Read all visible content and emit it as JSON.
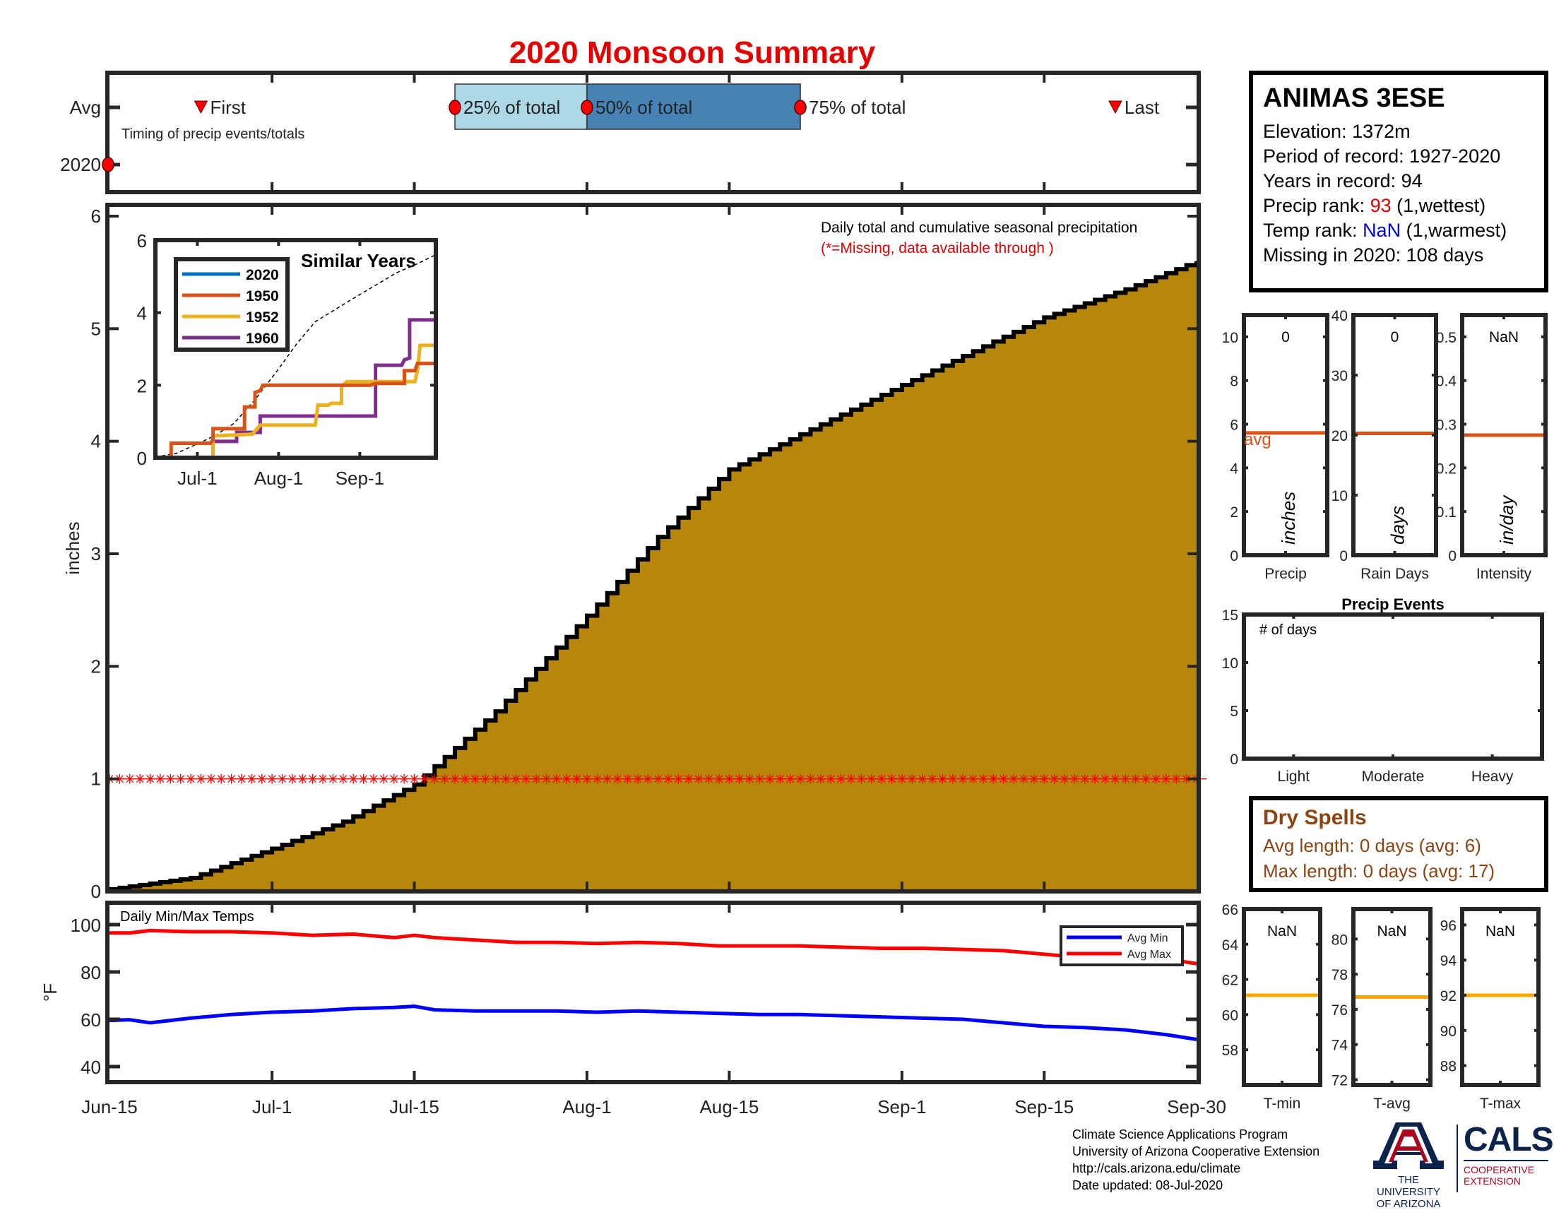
{
  "title": "2020 Monsoon Summary",
  "timeline": {
    "row_labels": [
      "Avg",
      "2020"
    ],
    "caption": "Timing of precip events/totals",
    "markers": [
      {
        "label": "First",
        "date_day": 9,
        "kind": "triangle"
      },
      {
        "label": "25% of total",
        "date_day": 34,
        "kind": "circle"
      },
      {
        "label": "50% of total",
        "date_day": 47,
        "kind": "circle"
      },
      {
        "label": "75% of total",
        "date_day": 68,
        "kind": "circle"
      },
      {
        "label": "Last",
        "date_day": 99,
        "kind": "triangle"
      }
    ],
    "marker_2020_day": 0,
    "band_colors": {
      "q1": "#add8e6",
      "q2": "#4682b4"
    }
  },
  "station": {
    "name": "ANIMAS 3ESE",
    "elevation_label": "Elevation: 1372m",
    "period_label": "Period of record: 1927-2020",
    "years_label": "Years in record: 94",
    "precip_rank_prefix": "Precip rank: ",
    "precip_rank": "93",
    "precip_rank_suffix": " (1,wettest)",
    "temp_rank_prefix": "Temp rank: ",
    "temp_rank": "NaN",
    "temp_rank_suffix": " (1,warmest)",
    "missing_label": "Missing in 2020: 108 days"
  },
  "chart_data": [
    {
      "id": "cumulative-precip",
      "type": "area",
      "title": "Daily total and cumulative seasonal precipitation",
      "subtitle": "(*=Missing, data available through )",
      "ylabel": "inches",
      "ylim": [
        0,
        6
      ],
      "yticks": [
        0,
        1,
        2,
        3,
        4,
        5,
        6
      ],
      "xlim_days": [
        0,
        107
      ],
      "xticks": [
        {
          "day": 0,
          "label": "Jun-15"
        },
        {
          "day": 16,
          "label": "Jul-1"
        },
        {
          "day": 30,
          "label": "Jul-15"
        },
        {
          "day": 47,
          "label": "Aug-1"
        },
        {
          "day": 61,
          "label": "Aug-15"
        },
        {
          "day": 78,
          "label": "Sep-1"
        },
        {
          "day": 92,
          "label": "Sep-15"
        },
        {
          "day": 107,
          "label": "Sep-30"
        }
      ],
      "fill_color": "#b8860b",
      "avg_cumulative_keypoints": {
        "days": [
          0,
          8,
          16,
          23,
          30,
          38,
          47,
          54,
          61,
          70,
          78,
          85,
          92,
          100,
          107
        ],
        "values": [
          0.02,
          0.12,
          0.38,
          0.62,
          0.95,
          1.6,
          2.45,
          3.15,
          3.75,
          4.15,
          4.5,
          4.8,
          5.1,
          5.35,
          5.6
        ]
      },
      "missing_marker_value": 1,
      "missing_days_count": 108,
      "missing_color": "#ff0000"
    },
    {
      "id": "similar-years",
      "type": "line",
      "title": "Similar Years",
      "ylim": [
        0,
        6
      ],
      "yticks": [
        0,
        2,
        4,
        6
      ],
      "xticks": [
        {
          "day": 16,
          "label": "Jul-1"
        },
        {
          "day": 47,
          "label": "Aug-1"
        },
        {
          "day": 78,
          "label": "Sep-1"
        }
      ],
      "xlim_days": [
        0,
        107
      ],
      "legend_position": "top-left",
      "series": [
        {
          "name": "2020",
          "color": "#0072bd",
          "steps": [
            [
              0,
              0
            ],
            [
              107,
              0
            ]
          ]
        },
        {
          "name": "1950",
          "color": "#d95319",
          "steps": [
            [
              0,
              0
            ],
            [
              6,
              0
            ],
            [
              6,
              0.4
            ],
            [
              21,
              0.4
            ],
            [
              22,
              0.5
            ],
            [
              22,
              0.8
            ],
            [
              34,
              0.8
            ],
            [
              34,
              1.4
            ],
            [
              38,
              1.4
            ],
            [
              38,
              1.8
            ],
            [
              40,
              1.85
            ],
            [
              41,
              2.0
            ],
            [
              82,
              2.0
            ],
            [
              84,
              2.05
            ],
            [
              95,
              2.05
            ],
            [
              95,
              2.4
            ],
            [
              99,
              2.4
            ],
            [
              100,
              2.6
            ],
            [
              107,
              2.6
            ]
          ]
        },
        {
          "name": "1952",
          "color": "#edb120",
          "steps": [
            [
              0,
              0
            ],
            [
              22,
              0
            ],
            [
              22,
              0.6
            ],
            [
              37,
              0.65
            ],
            [
              40,
              0.9
            ],
            [
              61,
              0.9
            ],
            [
              62,
              1.45
            ],
            [
              66,
              1.45
            ],
            [
              67,
              1.5
            ],
            [
              71,
              1.5
            ],
            [
              71,
              1.95
            ],
            [
              73,
              2.1
            ],
            [
              99,
              2.1
            ],
            [
              100,
              2.4
            ],
            [
              101,
              3.1
            ],
            [
              107,
              3.1
            ]
          ]
        },
        {
          "name": "1960",
          "color": "#7e2f8e",
          "steps": [
            [
              0,
              0
            ],
            [
              22,
              0
            ],
            [
              22,
              0.45
            ],
            [
              31,
              0.45
            ],
            [
              31,
              0.7
            ],
            [
              40,
              0.7
            ],
            [
              40,
              1.15
            ],
            [
              84,
              1.15
            ],
            [
              84,
              2.55
            ],
            [
              94,
              2.55
            ],
            [
              95,
              2.7
            ],
            [
              97,
              2.75
            ],
            [
              97,
              3.8
            ],
            [
              107,
              3.8
            ]
          ]
        }
      ],
      "avg_dashed": {
        "days": [
          0,
          8,
          16,
          23,
          30,
          38,
          47,
          54,
          61,
          70,
          78,
          85,
          92,
          100,
          107
        ],
        "values": [
          0.02,
          0.12,
          0.38,
          0.62,
          0.95,
          1.6,
          2.45,
          3.15,
          3.75,
          4.15,
          4.5,
          4.8,
          5.1,
          5.35,
          5.6
        ]
      }
    },
    {
      "id": "daily-temps",
      "type": "line",
      "title": "Daily Min/Max Temps",
      "ylabel": "°F",
      "ylim": [
        33,
        109
      ],
      "yticks": [
        40,
        60,
        80,
        100
      ],
      "legend_position": "top-right",
      "series": [
        {
          "name": "Avg Min",
          "color": "#0000ff",
          "days": [
            0,
            2,
            4,
            8,
            12,
            16,
            20,
            24,
            28,
            30,
            32,
            36,
            40,
            44,
            48,
            52,
            56,
            60,
            64,
            68,
            72,
            76,
            80,
            84,
            88,
            92,
            96,
            100,
            104,
            107
          ],
          "values": [
            59.5,
            59.8,
            58.5,
            60.5,
            62,
            63,
            63.5,
            64.5,
            65,
            65.5,
            64,
            63.5,
            63.5,
            63.5,
            63,
            63.5,
            63,
            62.5,
            62,
            62,
            61.5,
            61,
            60.5,
            60,
            58.5,
            57,
            56.5,
            55.5,
            53.5,
            51.5
          ]
        },
        {
          "name": "Avg Max",
          "color": "#ff0000",
          "days": [
            0,
            2,
            4,
            8,
            12,
            16,
            20,
            24,
            28,
            30,
            32,
            36,
            40,
            44,
            48,
            52,
            56,
            60,
            64,
            68,
            72,
            76,
            80,
            84,
            88,
            92,
            96,
            100,
            104,
            107
          ],
          "values": [
            96.5,
            96.5,
            97.5,
            97,
            97,
            96.5,
            95.5,
            96,
            94.5,
            95.5,
            94.5,
            93.5,
            92.5,
            92.5,
            92,
            92.5,
            92,
            91,
            91,
            91,
            90.5,
            90,
            90,
            89.5,
            89,
            87.5,
            86,
            85,
            85.5,
            83.5
          ]
        }
      ]
    },
    {
      "id": "precip-total",
      "type": "bar",
      "xlabel": "Precip",
      "unit_label": "inches",
      "value_label": "0",
      "value": 0,
      "avg": 5.6,
      "avg_label": "avg",
      "ylim": [
        0,
        11
      ],
      "yticks": [
        0,
        2,
        4,
        6,
        8,
        10
      ],
      "avg_color": "#d95319"
    },
    {
      "id": "rain-days",
      "type": "bar",
      "xlabel": "Rain Days",
      "unit_label": "days",
      "value_label": "0",
      "value": 0,
      "avg": 20.3,
      "ylim": [
        0,
        40
      ],
      "yticks": [
        0,
        10,
        20,
        30,
        40
      ],
      "avg_color": "#d95319"
    },
    {
      "id": "intensity",
      "type": "bar",
      "xlabel": "Intensity",
      "unit_label": "in/day",
      "value_label": "NaN",
      "value": null,
      "avg": 0.275,
      "ylim": [
        0,
        0.55
      ],
      "yticks": [
        0,
        0.1,
        0.2,
        0.3,
        0.4,
        0.5
      ],
      "avg_color": "#d95319"
    },
    {
      "id": "precip-events",
      "type": "bar",
      "title": "Precip Events",
      "inner_label": "# of days",
      "categories": [
        "Light",
        "Moderate",
        "Heavy"
      ],
      "values": [
        0,
        0,
        0
      ],
      "ylim": [
        0,
        15
      ],
      "yticks": [
        0,
        5,
        10,
        15
      ]
    },
    {
      "id": "t-min",
      "type": "bar",
      "xlabel": "T-min",
      "value_label": "NaN",
      "value": null,
      "avg": 61.1,
      "ylim": [
        56,
        66
      ],
      "yticks": [
        58,
        60,
        62,
        64,
        66
      ],
      "avg_color": "#ffa500"
    },
    {
      "id": "t-avg",
      "type": "bar",
      "xlabel": "T-avg",
      "value_label": "NaN",
      "value": null,
      "avg": 76.7,
      "ylim": [
        71.7,
        81.7
      ],
      "yticks": [
        72,
        74,
        76,
        78,
        80
      ],
      "avg_color": "#ffa500"
    },
    {
      "id": "t-max",
      "type": "bar",
      "xlabel": "T-max",
      "value_label": "NaN",
      "value": null,
      "avg": 92,
      "ylim": [
        86.9,
        96.9
      ],
      "yticks": [
        88,
        90,
        92,
        94,
        96
      ],
      "avg_color": "#ffa500"
    }
  ],
  "dry_spells": {
    "title": "Dry Spells",
    "avg_length": "Avg length: 0 days (avg: 6)",
    "max_length": "Max length: 0 days (avg: 17)"
  },
  "footer": {
    "line1": "Climate Science Applications Program",
    "line2": "University of Arizona Cooperative Extension",
    "line3": "http://cals.arizona.edu/climate",
    "line4": " Date updated: 08-Jul-2020"
  },
  "logos": {
    "ua_line1": "THE UNIVERSITY",
    "ua_line2": "OF ARIZONA",
    "cals": "CALS",
    "cals_sub1": "COOPERATIVE",
    "cals_sub2": "EXTENSION",
    "ua_blue": "#0c234b",
    "ua_red": "#ab0520"
  }
}
